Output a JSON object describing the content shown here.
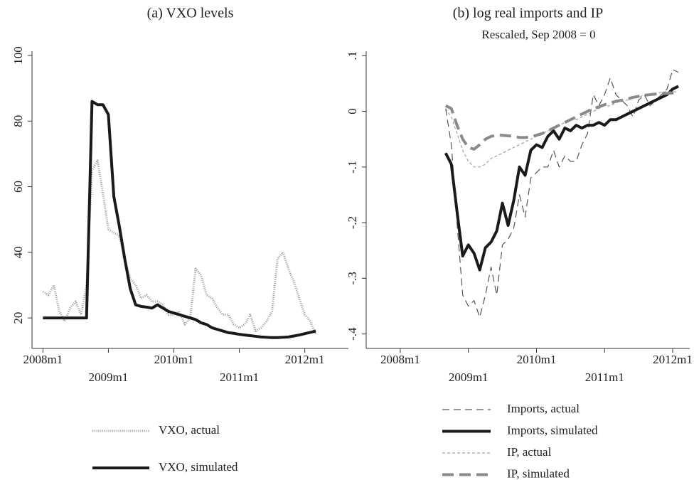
{
  "chart_data": [
    {
      "type": "line",
      "title": "(a) VXO levels",
      "x": [
        "2008m1",
        "2008m2",
        "2008m3",
        "2008m4",
        "2008m5",
        "2008m6",
        "2008m7",
        "2008m8",
        "2008m9",
        "2008m10",
        "2008m11",
        "2008m12",
        "2009m1",
        "2009m2",
        "2009m3",
        "2009m4",
        "2009m5",
        "2009m6",
        "2009m7",
        "2009m8",
        "2009m9",
        "2009m10",
        "2009m11",
        "2009m12",
        "2010m1",
        "2010m2",
        "2010m3",
        "2010m4",
        "2010m5",
        "2010m6",
        "2010m7",
        "2010m8",
        "2010m9",
        "2010m10",
        "2010m11",
        "2010m12",
        "2011m1",
        "2011m2",
        "2011m3",
        "2011m4",
        "2011m5",
        "2011m6",
        "2011m7",
        "2011m8",
        "2011m9",
        "2011m10",
        "2011m11",
        "2011m12",
        "2012m1",
        "2012m2",
        "2012m3"
      ],
      "series": [
        {
          "name": "VXO, actual",
          "color": "#a8a8a8",
          "line_style": "dotted",
          "line_width": 3,
          "values": [
            28,
            27,
            30,
            22,
            19,
            23,
            25,
            21,
            30,
            65,
            68,
            58,
            47,
            46,
            45,
            38,
            32,
            30,
            26,
            27,
            25,
            25,
            24,
            21,
            21,
            22,
            18,
            20,
            35,
            33,
            27,
            26,
            23,
            21,
            21,
            18,
            17,
            18,
            21,
            16,
            17,
            19,
            22,
            38,
            40,
            35,
            31,
            26,
            21,
            19,
            15
          ]
        },
        {
          "name": "VXO, simulated",
          "color": "#1a1a1a",
          "line_style": "solid",
          "line_width": 4,
          "values": [
            20,
            20,
            20,
            20,
            20,
            20,
            20,
            20,
            20,
            86,
            85,
            85,
            82,
            57,
            48,
            38,
            29,
            24,
            23.5,
            23.3,
            23,
            24,
            23,
            22,
            21.5,
            21,
            20.5,
            20,
            19.5,
            18.5,
            18,
            17,
            16.5,
            16,
            15.5,
            15.3,
            15,
            14.8,
            14.6,
            14.4,
            14.2,
            14.1,
            14,
            14,
            14.1,
            14.2,
            14.5,
            14.8,
            15.2,
            15.6,
            16
          ]
        }
      ],
      "xlim": [
        "2007m11",
        "2012m9"
      ],
      "xticks": [
        "2008m1",
        "2009m1",
        "2010m1",
        "2011m1",
        "2012m1"
      ],
      "ylim": [
        10.7,
        101.3
      ],
      "yticks": [
        20,
        40,
        60,
        80,
        100
      ]
    },
    {
      "type": "line",
      "title": "(b) log real imports and IP",
      "subtitle": "Rescaled, Sep 2008 = 0",
      "x": [
        "2008m9",
        "2008m10",
        "2008m11",
        "2008m12",
        "2009m1",
        "2009m2",
        "2009m3",
        "2009m4",
        "2009m5",
        "2009m6",
        "2009m7",
        "2009m8",
        "2009m9",
        "2009m10",
        "2009m11",
        "2009m12",
        "2010m1",
        "2010m2",
        "2010m3",
        "2010m4",
        "2010m5",
        "2010m6",
        "2010m7",
        "2010m8",
        "2010m9",
        "2010m10",
        "2010m11",
        "2010m12",
        "2011m1",
        "2011m2",
        "2011m3",
        "2011m4",
        "2011m5",
        "2011m6",
        "2011m7",
        "2011m8",
        "2011m9",
        "2011m10",
        "2011m11",
        "2011m12",
        "2012m1",
        "2012m2"
      ],
      "series": [
        {
          "name": "Imports, actual",
          "color": "#555555",
          "line_style": "dashed",
          "line_width": 1.2,
          "values": [
            0.005,
            -0.06,
            -0.2,
            -0.33,
            -0.35,
            -0.34,
            -0.37,
            -0.33,
            -0.28,
            -0.33,
            -0.24,
            -0.23,
            -0.21,
            -0.15,
            -0.19,
            -0.12,
            -0.11,
            -0.1,
            -0.1,
            -0.07,
            -0.1,
            -0.08,
            -0.09,
            -0.09,
            -0.06,
            -0.04,
            0.03,
            0.01,
            0.03,
            0.06,
            0.03,
            0.02,
            0.01,
            -0.01,
            0.02,
            0.03,
            0.01,
            0.02,
            0.03,
            0.04,
            0.075,
            0.07
          ]
        },
        {
          "name": "Imports, simulated",
          "color": "#1a1a1a",
          "line_style": "solid",
          "line_width": 4,
          "values": [
            -0.075,
            -0.095,
            -0.18,
            -0.26,
            -0.24,
            -0.255,
            -0.285,
            -0.245,
            -0.235,
            -0.215,
            -0.165,
            -0.205,
            -0.16,
            -0.1,
            -0.115,
            -0.07,
            -0.06,
            -0.065,
            -0.045,
            -0.035,
            -0.05,
            -0.03,
            -0.035,
            -0.025,
            -0.03,
            -0.025,
            -0.025,
            -0.02,
            -0.025,
            -0.015,
            -0.015,
            -0.01,
            -0.005,
            0,
            0.005,
            0.01,
            0.015,
            0.02,
            0.025,
            0.03,
            0.04,
            0.045
          ]
        },
        {
          "name": "IP, actual",
          "color": "#a0a0a0",
          "line_style": "shortdash",
          "line_width": 1.2,
          "values": [
            0.005,
            -0.01,
            -0.04,
            -0.07,
            -0.09,
            -0.1,
            -0.1,
            -0.095,
            -0.085,
            -0.08,
            -0.075,
            -0.07,
            -0.065,
            -0.06,
            -0.055,
            -0.05,
            -0.045,
            -0.04,
            -0.035,
            -0.03,
            -0.025,
            -0.02,
            -0.015,
            -0.015,
            -0.01,
            -0.005,
            0,
            0.005,
            0.01,
            0.01,
            0.015,
            0.02,
            0.02,
            0.025,
            0.025,
            0.03,
            0.03,
            0.03,
            0.035,
            0.035,
            0.035,
            0.035
          ]
        },
        {
          "name": "IP, simulated",
          "color": "#8a8a8a",
          "line_style": "longdash",
          "line_width": 4,
          "values": [
            0.01,
            0.005,
            -0.025,
            -0.05,
            -0.065,
            -0.068,
            -0.06,
            -0.05,
            -0.045,
            -0.043,
            -0.043,
            -0.044,
            -0.045,
            -0.047,
            -0.047,
            -0.046,
            -0.043,
            -0.04,
            -0.035,
            -0.03,
            -0.025,
            -0.02,
            -0.015,
            -0.01,
            -0.005,
            0,
            0.005,
            0.008,
            0.012,
            0.015,
            0.018,
            0.02,
            0.022,
            0.025,
            0.027,
            0.029,
            0.03,
            0.031,
            0.032,
            0.032,
            0.033,
            0.033
          ]
        }
      ],
      "xlim": [
        "2007m7",
        "2012m4"
      ],
      "xticks": [
        "2008m1",
        "2009m1",
        "2010m1",
        "2011m1",
        "2012m1"
      ],
      "ylim": [
        -0.426,
        0.108
      ],
      "yticks": [
        {
          "value": 0.1,
          "label": ".1"
        },
        0,
        {
          "value": -0.1,
          "label": "-.1"
        },
        {
          "value": -0.2,
          "label": "-.2"
        },
        {
          "value": -0.3,
          "label": "-.3"
        },
        {
          "value": -0.4,
          "label": "-.4"
        }
      ]
    }
  ]
}
